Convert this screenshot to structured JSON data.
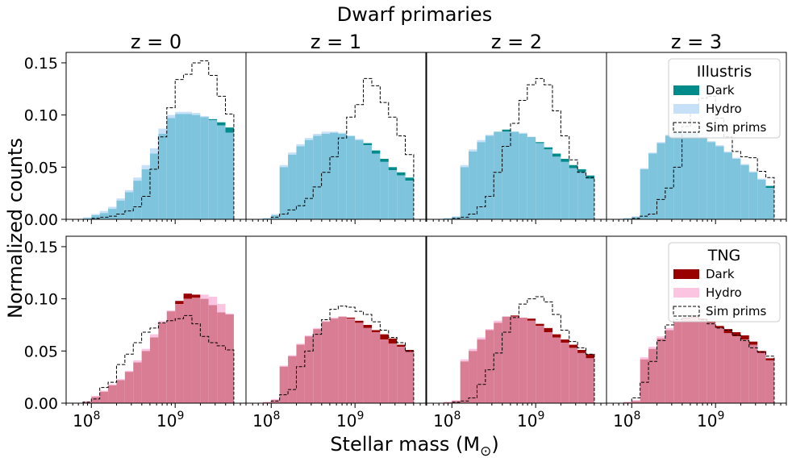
{
  "figure": {
    "suptitle": "Dwarf primaries",
    "xlabel": "Stellar mass (M",
    "xlabel_sub": "⊙",
    "xlabel_close": ")",
    "ylabel": "Normalized counts"
  },
  "colors": {
    "illustris_dark": "#008b8b",
    "illustris_hydro": "#c6e0f7",
    "illustris_overlap": "#7ec4dd",
    "tng_dark": "#990000",
    "tng_hydro": "#fbc4e0",
    "tng_overlap": "#d97d95",
    "sim_prims": "#000000"
  },
  "chart_data": {
    "type": "bar",
    "x_scale": "log",
    "xlim": [
      50000000,
      7000000000
    ],
    "ylim": [
      0,
      0.16
    ],
    "y_ticks": [
      0.0,
      0.05,
      0.1,
      0.15
    ],
    "y_tick_labels": [
      "0.00",
      "0.05",
      "0.10",
      "0.15"
    ],
    "x_ticks": [
      100000000,
      1000000000
    ],
    "x_tick_labels": [
      "10",
      "10"
    ],
    "x_tick_exponents": [
      "8",
      "9"
    ],
    "bin_edges_log10": [
      7.9,
      8.0,
      8.1,
      8.2,
      8.3,
      8.4,
      8.5,
      8.6,
      8.7,
      8.8,
      8.9,
      9.0,
      9.1,
      9.2,
      9.3,
      9.4,
      9.5,
      9.6,
      9.7
    ],
    "column_titles": [
      "z = 0",
      "z = 1",
      "z = 2",
      "z = 3"
    ],
    "rows": [
      {
        "legend_title": "Illustris",
        "legend_entries": [
          "Dark",
          "Hydro",
          "Sim prims"
        ],
        "panels": [
          {
            "z": "z = 0",
            "dark": [
              0.001,
              0.004,
              0.006,
              0.01,
              0.018,
              0.026,
              0.037,
              0.048,
              0.063,
              0.082,
              0.097,
              0.101,
              0.101,
              0.1,
              0.098,
              0.096,
              0.093,
              0.088,
              0.002
            ],
            "hydro": [
              0.002,
              0.005,
              0.008,
              0.012,
              0.02,
              0.028,
              0.04,
              0.052,
              0.068,
              0.087,
              0.1,
              0.103,
              0.103,
              0.102,
              0.099,
              0.095,
              0.09,
              0.083,
              0.002
            ],
            "sim": [
              0.0,
              0.001,
              0.002,
              0.003,
              0.005,
              0.008,
              0.012,
              0.022,
              0.048,
              0.079,
              0.107,
              0.134,
              0.139,
              0.15,
              0.152,
              0.138,
              0.118,
              0.101,
              0.003
            ]
          },
          {
            "z": "z = 1",
            "dark": [
              0.001,
              0.004,
              0.05,
              0.062,
              0.07,
              0.076,
              0.08,
              0.082,
              0.083,
              0.082,
              0.08,
              0.076,
              0.073,
              0.066,
              0.058,
              0.05,
              0.045,
              0.04,
              0.035
            ],
            "hydro": [
              0.001,
              0.005,
              0.052,
              0.064,
              0.072,
              0.078,
              0.082,
              0.084,
              0.084,
              0.083,
              0.08,
              0.077,
              0.071,
              0.063,
              0.055,
              0.047,
              0.042,
              0.037,
              0.033
            ],
            "sim": [
              0.0,
              0.002,
              0.005,
              0.009,
              0.013,
              0.02,
              0.031,
              0.045,
              0.06,
              0.078,
              0.098,
              0.11,
              0.135,
              0.128,
              0.112,
              0.098,
              0.08,
              0.062,
              0.042
            ]
          },
          {
            "z": "z = 2",
            "dark": [
              0.001,
              0.002,
              0.05,
              0.065,
              0.074,
              0.08,
              0.084,
              0.086,
              0.084,
              0.082,
              0.079,
              0.074,
              0.069,
              0.063,
              0.058,
              0.052,
              0.048,
              0.042,
              0.03
            ],
            "hydro": [
              0.001,
              0.003,
              0.052,
              0.067,
              0.076,
              0.081,
              0.084,
              0.084,
              0.084,
              0.083,
              0.079,
              0.073,
              0.067,
              0.06,
              0.055,
              0.049,
              0.045,
              0.039,
              0.028
            ],
            "sim": [
              0.0,
              0.001,
              0.002,
              0.005,
              0.012,
              0.022,
              0.045,
              0.07,
              0.092,
              0.114,
              0.129,
              0.135,
              0.129,
              0.104,
              0.08,
              0.057,
              0.045,
              0.04,
              0.002
            ]
          },
          {
            "z": "z = 3",
            "dark": [
              0.001,
              0.002,
              0.048,
              0.063,
              0.073,
              0.08,
              0.083,
              0.082,
              0.082,
              0.079,
              0.074,
              0.07,
              0.064,
              0.058,
              0.052,
              0.045,
              0.038,
              0.032,
              0.028
            ],
            "hydro": [
              0.001,
              0.003,
              0.049,
              0.064,
              0.074,
              0.081,
              0.084,
              0.084,
              0.083,
              0.08,
              0.075,
              0.071,
              0.065,
              0.059,
              0.053,
              0.046,
              0.039,
              0.03,
              0.026
            ],
            "sim": [
              0.0,
              0.001,
              0.003,
              0.005,
              0.019,
              0.03,
              0.05,
              0.089,
              0.11,
              0.116,
              0.118,
              0.097,
              0.079,
              0.065,
              0.06,
              0.059,
              0.046,
              0.04,
              0.002
            ]
          }
        ]
      },
      {
        "legend_title": "TNG",
        "legend_entries": [
          "Dark",
          "Hydro",
          "Sim prims"
        ],
        "panels": [
          {
            "z": "z = 0",
            "dark": [
              0.001,
              0.006,
              0.011,
              0.017,
              0.022,
              0.03,
              0.039,
              0.05,
              0.063,
              0.077,
              0.088,
              0.098,
              0.105,
              0.104,
              0.1,
              0.094,
              0.087,
              0.085,
              0.003
            ],
            "hydro": [
              0.002,
              0.007,
              0.012,
              0.018,
              0.023,
              0.031,
              0.041,
              0.052,
              0.066,
              0.079,
              0.089,
              0.095,
              0.1,
              0.101,
              0.104,
              0.102,
              0.095,
              0.086,
              0.002
            ],
            "sim": [
              0.001,
              0.004,
              0.015,
              0.02,
              0.037,
              0.047,
              0.058,
              0.068,
              0.072,
              0.077,
              0.079,
              0.081,
              0.084,
              0.076,
              0.064,
              0.058,
              0.055,
              0.051,
              0.002
            ]
          },
          {
            "z": "z = 1",
            "dark": [
              0.001,
              0.003,
              0.035,
              0.045,
              0.056,
              0.064,
              0.071,
              0.078,
              0.081,
              0.083,
              0.082,
              0.079,
              0.075,
              0.07,
              0.066,
              0.062,
              0.056,
              0.051,
              0.047
            ],
            "hydro": [
              0.001,
              0.004,
              0.036,
              0.046,
              0.057,
              0.065,
              0.072,
              0.079,
              0.082,
              0.083,
              0.081,
              0.077,
              0.072,
              0.068,
              0.061,
              0.057,
              0.054,
              0.049,
              0.045
            ],
            "sim": [
              0.0,
              0.002,
              0.008,
              0.013,
              0.035,
              0.05,
              0.066,
              0.08,
              0.09,
              0.093,
              0.092,
              0.088,
              0.085,
              0.078,
              0.07,
              0.063,
              0.058,
              0.05,
              0.002
            ]
          },
          {
            "z": "z = 2",
            "dark": [
              0.001,
              0.002,
              0.04,
              0.05,
              0.061,
              0.07,
              0.077,
              0.083,
              0.084,
              0.082,
              0.081,
              0.076,
              0.072,
              0.066,
              0.061,
              0.056,
              0.051,
              0.047,
              0.03
            ],
            "hydro": [
              0.001,
              0.003,
              0.042,
              0.052,
              0.063,
              0.071,
              0.079,
              0.083,
              0.083,
              0.082,
              0.079,
              0.074,
              0.068,
              0.063,
              0.058,
              0.053,
              0.048,
              0.043,
              0.028
            ],
            "sim": [
              0.0,
              0.001,
              0.002,
              0.005,
              0.018,
              0.032,
              0.048,
              0.068,
              0.082,
              0.095,
              0.1,
              0.102,
              0.097,
              0.085,
              0.07,
              0.059,
              0.053,
              0.047,
              0.002
            ]
          },
          {
            "z": "z = 3",
            "dark": [
              0.001,
              0.002,
              0.042,
              0.052,
              0.062,
              0.07,
              0.078,
              0.082,
              0.083,
              0.081,
              0.078,
              0.074,
              0.071,
              0.068,
              0.065,
              0.059,
              0.05,
              0.043,
              0.032
            ],
            "hydro": [
              0.001,
              0.003,
              0.044,
              0.054,
              0.064,
              0.072,
              0.079,
              0.081,
              0.082,
              0.08,
              0.077,
              0.072,
              0.067,
              0.064,
              0.061,
              0.056,
              0.048,
              0.041,
              0.03
            ],
            "sim": [
              0.0,
              0.005,
              0.02,
              0.04,
              0.06,
              0.075,
              0.08,
              0.084,
              0.084,
              0.08,
              0.076,
              0.072,
              0.07,
              0.065,
              0.06,
              0.053,
              0.049,
              0.045,
              0.002
            ]
          }
        ]
      }
    ]
  }
}
